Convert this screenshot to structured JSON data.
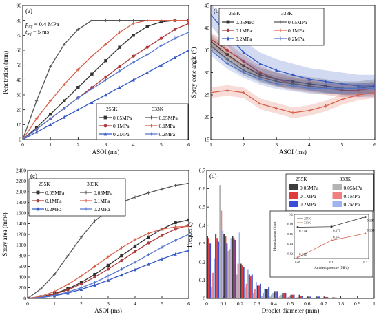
{
  "chart_data": [
    {
      "panel": "a",
      "type": "line",
      "panel_label": "(a)",
      "xlabel": "ASOI (ms)",
      "ylabel": "Penetration (mm)",
      "xlim": [
        0,
        6
      ],
      "ylim": [
        0,
        90
      ],
      "xticks": [
        0,
        1,
        2,
        3,
        4,
        5,
        6
      ],
      "yticks": [
        0,
        10,
        20,
        30,
        40,
        50,
        60,
        70,
        80,
        90
      ],
      "annotations": [
        {
          "main": "p",
          "sub": "inj",
          "rest": " = 0.4 MPa"
        },
        {
          "main": "t",
          "sub": "inj",
          "rest": " = 5 ms"
        }
      ],
      "legend": {
        "location": "lower-right",
        "group_titles": [
          "255K",
          "333K"
        ]
      },
      "series": [
        {
          "name": "0.05MPa",
          "group": "255K",
          "color": "#333333",
          "marker": "square",
          "x": [
            0,
            0.5,
            1,
            1.5,
            2,
            2.5,
            3,
            3.5,
            4,
            4.5,
            5,
            5.5,
            6
          ],
          "y": [
            0,
            8,
            17,
            26,
            35,
            44,
            53,
            62,
            70,
            76,
            79,
            80,
            80
          ]
        },
        {
          "name": "0.1MPa",
          "group": "255K",
          "color": "#b03a3a",
          "marker": "circle",
          "x": [
            0,
            0.5,
            1,
            1.5,
            2,
            2.5,
            3,
            3.5,
            4,
            4.5,
            5,
            5.5,
            6
          ],
          "y": [
            0,
            7,
            14,
            21,
            28,
            35,
            42,
            49,
            56,
            62,
            68,
            74,
            78
          ]
        },
        {
          "name": "0.2MPa",
          "group": "255K",
          "color": "#3358c4",
          "marker": "triangle",
          "x": [
            0,
            0.5,
            1,
            1.5,
            2,
            2.5,
            3,
            3.5,
            4,
            4.5,
            5,
            5.5,
            6
          ],
          "y": [
            0,
            5,
            10,
            15,
            20,
            25,
            30,
            35,
            40,
            45,
            50,
            55,
            60
          ]
        },
        {
          "name": "0.05MPa",
          "group": "333K",
          "color": "#555555",
          "marker": "tick",
          "x": [
            0,
            0.5,
            1,
            1.5,
            2,
            2.5,
            3,
            3.5,
            4,
            4.5,
            5,
            5.5,
            6
          ],
          "y": [
            0,
            26,
            49,
            64,
            74,
            80,
            80,
            80,
            80,
            80,
            80,
            80,
            80
          ]
        },
        {
          "name": "0.1MPa",
          "group": "333K",
          "color": "#d9604a",
          "marker": "tick",
          "x": [
            0,
            0.5,
            1,
            1.5,
            2,
            2.5,
            3,
            3.5,
            4,
            4.5,
            5,
            5.5,
            6
          ],
          "y": [
            0,
            14,
            26,
            37,
            47,
            56,
            64,
            72,
            78,
            80,
            80,
            80,
            80
          ]
        },
        {
          "name": "0.2MPa",
          "group": "333K",
          "color": "#5577cc",
          "marker": "tick",
          "x": [
            0,
            0.5,
            1,
            1.5,
            2,
            2.5,
            3,
            3.5,
            4,
            4.5,
            5,
            5.5,
            6
          ],
          "y": [
            0,
            7,
            14,
            21,
            28,
            34,
            40,
            46,
            52,
            57,
            63,
            68,
            72
          ]
        }
      ]
    },
    {
      "panel": "b",
      "type": "line",
      "panel_label": "(b)",
      "xlabel": "ASOI (ms)",
      "ylabel": "Spray cone angle (°)",
      "xlim": [
        1,
        6
      ],
      "ylim": [
        15,
        45
      ],
      "xticks": [
        1,
        2,
        3,
        4,
        5,
        6
      ],
      "yticks": [
        15,
        20,
        25,
        30,
        35,
        40,
        45
      ],
      "legend": {
        "location": "top-right",
        "group_titles": [
          "255K",
          "333K"
        ]
      },
      "series": [
        {
          "name": "0.05MPa",
          "group": "255K",
          "color": "#333333",
          "marker": "square",
          "band": 1.5,
          "x": [
            1,
            1.5,
            2,
            2.5,
            3,
            3.5,
            4,
            4.5,
            5,
            5.5,
            6
          ],
          "y": [
            37,
            34,
            31.5,
            29.5,
            28.5,
            28,
            27.5,
            27,
            26.5,
            26.5,
            27
          ]
        },
        {
          "name": "0.1MPa",
          "group": "255K",
          "color": "#b03a3a",
          "marker": "circle",
          "band": 1.5,
          "x": [
            1,
            1.5,
            2,
            2.5,
            3,
            3.5,
            4,
            4.5,
            5,
            5.5,
            6
          ],
          "y": [
            37.5,
            35,
            32.5,
            30,
            28.5,
            27.5,
            27,
            26.5,
            26,
            26,
            26.5
          ]
        },
        {
          "name": "0.2MPa",
          "group": "255K",
          "color": "#3358c4",
          "marker": "triangle",
          "band": 2.5,
          "x": [
            1,
            1.5,
            2,
            2.5,
            3,
            3.5,
            4,
            4.5,
            5,
            5.5,
            6
          ],
          "y": [
            43,
            38.5,
            34.5,
            32,
            30.5,
            29.5,
            28.5,
            28,
            27.5,
            27,
            27
          ]
        },
        {
          "name": "0.05MPa",
          "group": "333K",
          "color": "#555555",
          "marker": "tick",
          "band": 1.2,
          "x": [
            1,
            1.5,
            2,
            2.5,
            3,
            3.5,
            4,
            4.5,
            5,
            5.5,
            6
          ],
          "y": [
            36,
            33,
            30.5,
            29,
            28,
            27.5,
            27,
            26.5,
            26.5,
            26.5,
            26.5
          ]
        },
        {
          "name": "0.1MPa",
          "group": "333K",
          "color": "#d9604a",
          "marker": "tick",
          "band": 1.2,
          "x": [
            1,
            1.5,
            2,
            2.5,
            3,
            3.5,
            4,
            4.5,
            5,
            5.5,
            6
          ],
          "y": [
            25.5,
            26,
            25.5,
            23,
            22,
            21,
            21.5,
            22.5,
            24,
            25,
            25.5
          ]
        },
        {
          "name": "0.2MPa",
          "group": "333K",
          "color": "#5577cc",
          "marker": "tick",
          "band": 1.2,
          "x": [
            1,
            1.5,
            2,
            2.5,
            3,
            3.5,
            4,
            4.5,
            5,
            5.5,
            6
          ],
          "y": [
            35,
            32,
            30,
            28.5,
            27.5,
            27,
            26.5,
            26.5,
            26.5,
            26.5,
            26.5
          ]
        }
      ]
    },
    {
      "panel": "c",
      "type": "line",
      "panel_label": "(c)",
      "xlabel": "ASOI (ms)",
      "ylabel": "Spray area (mm²)",
      "xlim": [
        0,
        6
      ],
      "ylim": [
        0,
        2400
      ],
      "xticks": [
        0,
        1,
        2,
        3,
        4,
        5,
        6
      ],
      "yticks": [
        0,
        200,
        400,
        600,
        800,
        1000,
        1200,
        1400,
        1600,
        1800,
        2000,
        2200,
        2400
      ],
      "legend": {
        "location": "top-left",
        "group_titles": [
          "255K",
          "333K"
        ]
      },
      "series": [
        {
          "name": "0.05MPa",
          "group": "255K",
          "color": "#333333",
          "marker": "square",
          "x": [
            0,
            0.5,
            1,
            1.5,
            2,
            2.5,
            3,
            3.5,
            4,
            4.5,
            5,
            5.5,
            6
          ],
          "y": [
            0,
            30,
            90,
            180,
            300,
            450,
            620,
            800,
            980,
            1150,
            1300,
            1420,
            1470
          ]
        },
        {
          "name": "0.1MPa",
          "group": "255K",
          "color": "#b03a3a",
          "marker": "circle",
          "x": [
            0,
            0.5,
            1,
            1.5,
            2,
            2.5,
            3,
            3.5,
            4,
            4.5,
            5,
            5.5,
            6
          ],
          "y": [
            0,
            25,
            80,
            160,
            270,
            400,
            550,
            710,
            880,
            1040,
            1180,
            1300,
            1370
          ]
        },
        {
          "name": "0.2MPa",
          "group": "255K",
          "color": "#3358c4",
          "marker": "triangle",
          "x": [
            0,
            0.5,
            1,
            1.5,
            2,
            2.5,
            3,
            3.5,
            4,
            4.5,
            5,
            5.5,
            6
          ],
          "y": [
            0,
            15,
            50,
            100,
            170,
            250,
            340,
            440,
            540,
            640,
            740,
            830,
            900
          ]
        },
        {
          "name": "0.05MPa",
          "group": "333K",
          "color": "#555555",
          "marker": "tick",
          "x": [
            0,
            0.5,
            1,
            1.5,
            2,
            2.5,
            3,
            3.5,
            4,
            4.5,
            5,
            5.5,
            6
          ],
          "y": [
            0,
            180,
            450,
            800,
            1150,
            1450,
            1650,
            1800,
            1900,
            1980,
            2050,
            2120,
            2160
          ]
        },
        {
          "name": "0.1MPa",
          "group": "333K",
          "color": "#d9604a",
          "marker": "tick",
          "x": [
            0,
            0.5,
            1,
            1.5,
            2,
            2.5,
            3,
            3.5,
            4,
            4.5,
            5,
            5.5,
            6
          ],
          "y": [
            0,
            40,
            130,
            260,
            420,
            600,
            780,
            950,
            1100,
            1220,
            1300,
            1340,
            1350
          ]
        },
        {
          "name": "0.2MPa",
          "group": "333K",
          "color": "#5577cc",
          "marker": "tick",
          "x": [
            0,
            0.5,
            1,
            1.5,
            2,
            2.5,
            3,
            3.5,
            4,
            4.5,
            5,
            5.5,
            6
          ],
          "y": [
            0,
            20,
            60,
            120,
            200,
            300,
            420,
            550,
            680,
            820,
            960,
            1090,
            1200
          ]
        }
      ]
    },
    {
      "panel": "d",
      "type": "bar",
      "panel_label": "(d)",
      "xlabel": "Droplet diameter (mm)",
      "ylabel": "Frequency",
      "xlim": [
        0,
        1.0
      ],
      "ylim": [
        0,
        0.7
      ],
      "xticks": [
        0,
        0.1,
        0.2,
        0.3,
        0.4,
        0.5,
        0.6,
        0.7,
        0.8,
        0.9,
        1.0
      ],
      "yticks": [
        0,
        0.1,
        0.2,
        0.3,
        0.4,
        0.5,
        0.6,
        0.7
      ],
      "bin_width": 0.05,
      "legend": {
        "location": "top-right",
        "group_titles": [
          "255K",
          "333K"
        ]
      },
      "bin_centers": [
        0.025,
        0.075,
        0.125,
        0.175,
        0.225,
        0.275,
        0.325,
        0.375,
        0.425,
        0.475,
        0.525,
        0.575,
        0.625,
        0.675,
        0.725,
        0.775,
        0.825,
        0.875,
        0.925
      ],
      "series": [
        {
          "name": "0.05MPa",
          "group": "255K",
          "color": "#3d3d3d",
          "values": [
            0.34,
            0.35,
            0.35,
            0.34,
            0.19,
            0.13,
            0.07,
            0.05,
            0.04,
            0.03,
            0.02,
            0.02,
            0.01,
            0.01,
            0.008,
            0.006,
            0.004,
            0.003,
            0.002
          ]
        },
        {
          "name": "0.1MPa",
          "group": "255K",
          "color": "#e23b3b",
          "values": [
            0.33,
            0.33,
            0.34,
            0.33,
            0.18,
            0.12,
            0.07,
            0.05,
            0.04,
            0.03,
            0.02,
            0.015,
            0.01,
            0.01,
            0.008,
            0.005,
            0.004,
            0.003,
            0.002
          ]
        },
        {
          "name": "0.2MPa",
          "group": "255K",
          "color": "#3b4fd6",
          "values": [
            0.3,
            0.31,
            0.3,
            0.32,
            0.17,
            0.13,
            0.08,
            0.06,
            0.04,
            0.03,
            0.02,
            0.015,
            0.01,
            0.01,
            0.007,
            0.005,
            0.004,
            0.003,
            0.002
          ]
        },
        {
          "name": "0.05MPa",
          "group": "333K",
          "color": "#b3b3b3",
          "values": [
            0.06,
            0.62,
            0.26,
            0.13,
            0.06,
            0.03,
            0.015,
            0.01,
            0.006,
            0.004,
            0.003,
            0.002,
            0.001,
            0.001,
            0.001,
            0,
            0,
            0,
            0
          ]
        },
        {
          "name": "0.1MPa",
          "group": "333K",
          "color": "#f08080",
          "values": [
            0.14,
            0.48,
            0.27,
            0.19,
            0.08,
            0.05,
            0.03,
            0.02,
            0.012,
            0.008,
            0.005,
            0.003,
            0.002,
            0.001,
            0.001,
            0,
            0,
            0,
            0
          ]
        },
        {
          "name": "0.2MPa",
          "group": "333K",
          "color": "#9fb4ee",
          "values": [
            0.22,
            0.37,
            0.33,
            0.36,
            0.16,
            0.09,
            0.05,
            0.03,
            0.02,
            0.012,
            0.008,
            0.005,
            0.003,
            0.002,
            0.001,
            0.001,
            0,
            0,
            0
          ]
        }
      ],
      "inset": {
        "type": "line",
        "xlabel": "Ambient pressure (MPa)",
        "ylabel": "Mean diameter (mm)",
        "x": [
          0.05,
          0.1,
          0.2
        ],
        "xticks": [
          0.05,
          0.1,
          0.2
        ],
        "ylim": [
          0.11,
          0.2
        ],
        "yticks": [
          0.12,
          0.14,
          0.16,
          0.18,
          0.2
        ],
        "series": [
          {
            "name": "255K",
            "color": "#333333",
            "values": [
              0.174,
              0.175,
              0.195
            ],
            "labels": [
              "0.174",
              "0.175",
              "0.195"
            ]
          },
          {
            "name": "333K",
            "color": "#d9604a",
            "values": [
              0.112,
              0.147,
              0.161
            ],
            "labels": [
              "0.112",
              "0.147",
              "0.161"
            ]
          }
        ]
      }
    }
  ]
}
